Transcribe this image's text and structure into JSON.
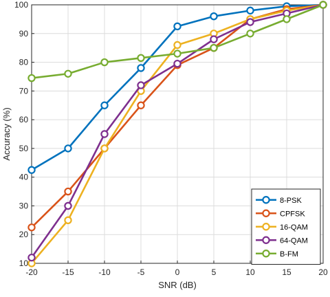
{
  "chart_data": {
    "type": "line",
    "xlabel": "SNR (dB)",
    "ylabel": "Accuracy (%)",
    "x": [
      -20,
      -15,
      -10,
      -5,
      0,
      5,
      10,
      15,
      20
    ],
    "xlim": [
      -20,
      20
    ],
    "ylim": [
      10,
      100
    ],
    "xticks": [
      "-20",
      "-15",
      "-10",
      "-5",
      "0",
      "5",
      "10",
      "15",
      "20"
    ],
    "yticks": [
      "10",
      "20",
      "30",
      "40",
      "50",
      "60",
      "70",
      "80",
      "90",
      "100"
    ],
    "grid": true,
    "legend_position": "bottom-right",
    "marker": "circle",
    "series": [
      {
        "name": "8-PSK",
        "color": "#0072BD",
        "values": [
          42.5,
          50,
          65,
          78,
          92.5,
          96,
          98,
          99.5,
          100
        ]
      },
      {
        "name": "CPFSK",
        "color": "#D95319",
        "values": [
          22.5,
          35,
          50,
          65,
          79,
          85,
          95,
          98.5,
          100
        ]
      },
      {
        "name": "16-QAM",
        "color": "#EDB120",
        "values": [
          10,
          25,
          50,
          70,
          86,
          90,
          95,
          98,
          100
        ]
      },
      {
        "name": "64-QAM",
        "color": "#7E2F8E",
        "values": [
          12,
          30,
          55,
          72,
          79.5,
          88,
          94,
          97,
          100
        ]
      },
      {
        "name": "B-FM",
        "color": "#77AC30",
        "values": [
          74.5,
          76,
          80,
          81.5,
          83,
          85,
          90,
          95,
          100
        ]
      }
    ]
  }
}
